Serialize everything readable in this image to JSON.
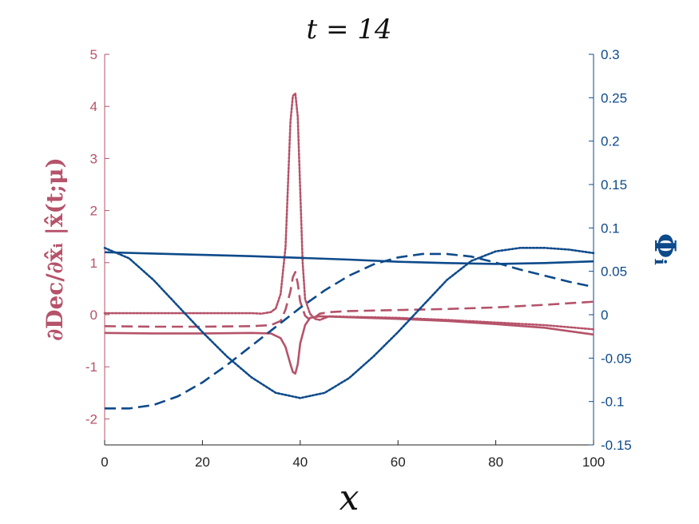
{
  "chart_data": {
    "type": "line",
    "title": "t = 14",
    "xlabel": "x",
    "ylabel_left": "∂Dec/∂x̂ᵢ |x̂(t;μ)",
    "ylabel_right": "Φᵢ",
    "xlim": [
      0,
      100
    ],
    "ylim_left": [
      -2.5,
      5
    ],
    "ylim_right": [
      -0.15,
      0.3
    ],
    "x_ticks": [
      "0",
      "20",
      "40",
      "60",
      "80",
      "100"
    ],
    "y_ticks_left": [
      "-2",
      "-1",
      "0",
      "1",
      "2",
      "3",
      "4",
      "5"
    ],
    "y_ticks_right": [
      "-0.15",
      "-0.1",
      "-0.05",
      "0",
      "0.05",
      "0.1",
      "0.15",
      "0.2",
      "0.25",
      "0.3"
    ],
    "grid": false,
    "colors": {
      "left": "#b5536a",
      "right": "#0d4a8a"
    },
    "series": [
      {
        "axis": "left",
        "style": "solid",
        "x": [
          0,
          10,
          20,
          30,
          34,
          36,
          37,
          38,
          38.5,
          39,
          39.5,
          40,
          41,
          42,
          44,
          50,
          60,
          70,
          80,
          90,
          100
        ],
        "y": [
          -0.35,
          -0.36,
          -0.36,
          -0.35,
          -0.36,
          -0.45,
          -0.62,
          -0.95,
          -1.1,
          -1.13,
          -0.95,
          -0.55,
          -0.2,
          -0.06,
          -0.03,
          -0.05,
          -0.08,
          -0.12,
          -0.18,
          -0.25,
          -0.38
        ]
      },
      {
        "axis": "left",
        "style": "dashed",
        "x": [
          0,
          10,
          20,
          30,
          34,
          36,
          37,
          38,
          38.5,
          39,
          39.5,
          40,
          41,
          42,
          43,
          44,
          46,
          50,
          60,
          70,
          80,
          90,
          100
        ],
        "y": [
          -0.22,
          -0.23,
          -0.23,
          -0.22,
          -0.2,
          -0.12,
          0.1,
          0.45,
          0.72,
          0.82,
          0.6,
          0.25,
          -0.02,
          -0.1,
          -0.05,
          0.02,
          0.05,
          0.07,
          0.09,
          0.11,
          0.14,
          0.19,
          0.25
        ]
      },
      {
        "axis": "left",
        "style": "dotted",
        "x": [
          0,
          10,
          20,
          30,
          32,
          34,
          35,
          36,
          37,
          37.5,
          38,
          38.5,
          39,
          39.5,
          40,
          40.5,
          41,
          42,
          43,
          44,
          46,
          50,
          60,
          70,
          80,
          90,
          100
        ],
        "y": [
          0.03,
          0.03,
          0.03,
          0.03,
          0.02,
          0.05,
          0.12,
          0.4,
          1.3,
          2.5,
          3.7,
          4.2,
          4.25,
          3.8,
          2.4,
          1.0,
          0.3,
          0.02,
          -0.08,
          -0.1,
          -0.03,
          -0.04,
          -0.06,
          -0.1,
          -0.15,
          -0.2,
          -0.28
        ]
      },
      {
        "axis": "right",
        "style": "solid",
        "x": [
          0,
          10,
          20,
          30,
          40,
          50,
          60,
          70,
          80,
          90,
          100
        ],
        "y": [
          0.072,
          0.0705,
          0.069,
          0.0675,
          0.0655,
          0.0635,
          0.061,
          0.0595,
          0.0585,
          0.0595,
          0.0615
        ]
      },
      {
        "axis": "right",
        "style": "dashed",
        "x": [
          0,
          5,
          10,
          15,
          20,
          25,
          30,
          35,
          40,
          45,
          50,
          55,
          60,
          65,
          70,
          75,
          80,
          85,
          90,
          95,
          100
        ],
        "y": [
          -0.108,
          -0.108,
          -0.104,
          -0.094,
          -0.078,
          -0.058,
          -0.036,
          -0.014,
          0.008,
          0.028,
          0.045,
          0.058,
          0.066,
          0.07,
          0.07,
          0.067,
          0.06,
          0.052,
          0.045,
          0.038,
          0.032
        ]
      },
      {
        "axis": "right",
        "style": "dotted",
        "x": [
          0,
          5,
          10,
          15,
          20,
          25,
          30,
          35,
          40,
          45,
          50,
          55,
          60,
          65,
          70,
          75,
          80,
          85,
          90,
          95,
          100
        ],
        "y": [
          0.077,
          0.065,
          0.04,
          0.01,
          -0.02,
          -0.048,
          -0.072,
          -0.09,
          -0.096,
          -0.09,
          -0.073,
          -0.048,
          -0.02,
          0.01,
          0.04,
          0.062,
          0.073,
          0.077,
          0.077,
          0.075,
          0.071
        ]
      }
    ]
  }
}
